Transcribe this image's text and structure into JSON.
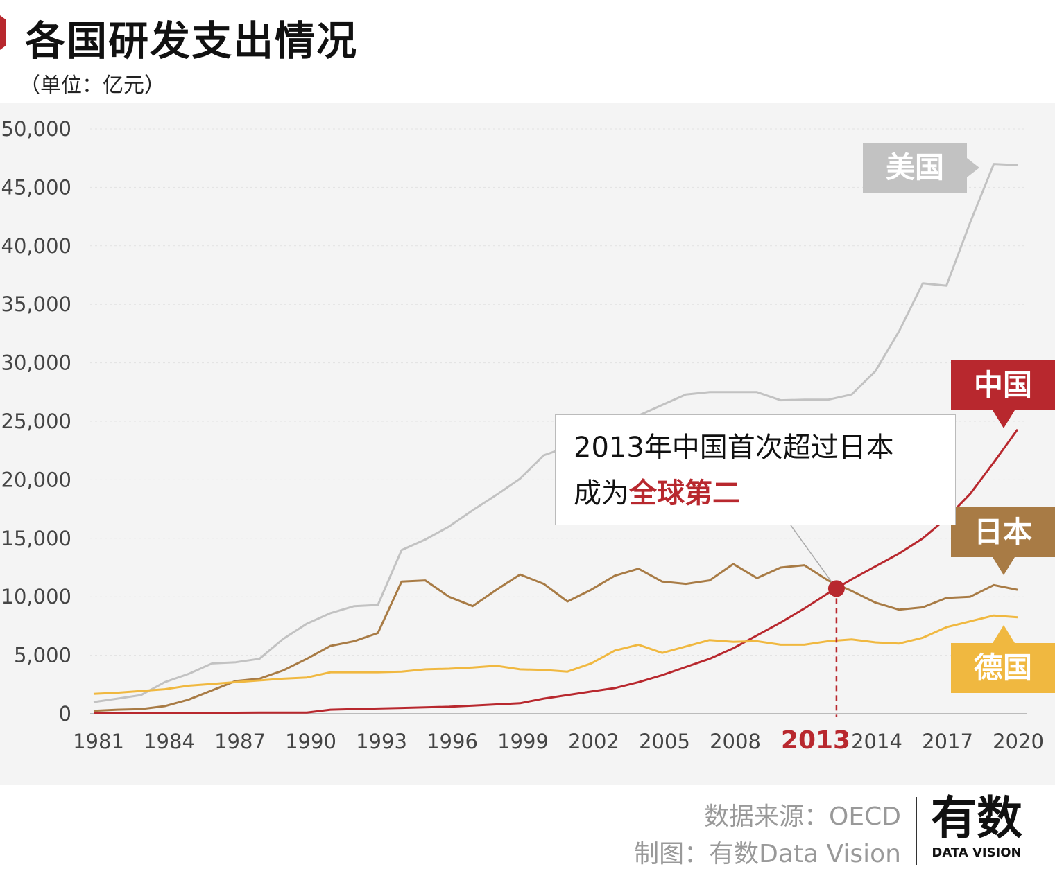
{
  "title": "各国研发支出情况",
  "unit": "（单位：亿元）",
  "colors": {
    "us": "#c2c2c2",
    "china": "#b8282e",
    "japan": "#a87b45",
    "germany": "#f0b840"
  },
  "chart_data": {
    "type": "line",
    "title": "各国研发支出情况",
    "ylabel": "（单位：亿元）",
    "ylim": [
      0,
      50000
    ],
    "yticks": [
      "0",
      "5,000",
      "10,000",
      "15,000",
      "20,000",
      "25,000",
      "30,000",
      "35,000",
      "40,000",
      "45,000",
      "50,000"
    ],
    "xtick_labels": [
      "1981",
      "1984",
      "1987",
      "1990",
      "1993",
      "1996",
      "1999",
      "2002",
      "2005",
      "2008",
      "2013",
      "2014",
      "2017",
      "2020"
    ],
    "highlight_tick": "2013",
    "grid": true,
    "x": [
      1981,
      1982,
      1983,
      1984,
      1985,
      1986,
      1987,
      1988,
      1989,
      1990,
      1991,
      1992,
      1993,
      1994,
      1995,
      1996,
      1997,
      1998,
      1999,
      2000,
      2001,
      2002,
      2003,
      2004,
      2005,
      2006,
      2007,
      2008,
      2009,
      2010,
      2011,
      2012,
      2013,
      2014,
      2015,
      2016,
      2017,
      2018,
      2019,
      2020
    ],
    "series": [
      {
        "name": "美国",
        "color": "#c2c2c2",
        "values": [
          1000,
          1300,
          1600,
          2700,
          3400,
          4300,
          4400,
          4700,
          6400,
          7700,
          8600,
          9200,
          9300,
          14000,
          14900,
          16000,
          17400,
          18700,
          20100,
          22100,
          22800,
          23700,
          24600,
          25500,
          26400,
          27300,
          27500,
          27500,
          27500,
          26800,
          26850,
          26850,
          27300,
          29300,
          32700,
          36800,
          36600,
          42000,
          47000,
          46900
        ]
      },
      {
        "name": "中国",
        "color": "#b8282e",
        "values": [
          30,
          40,
          50,
          60,
          70,
          80,
          90,
          100,
          100,
          100,
          350,
          400,
          450,
          500,
          550,
          600,
          700,
          800,
          900,
          1300,
          1600,
          1900,
          2200,
          2700,
          3300,
          4000,
          4700,
          5600,
          6700,
          7800,
          9000,
          10300,
          11500,
          12600,
          13700,
          15000,
          16700,
          18800,
          21500,
          24300
        ]
      },
      {
        "name": "日本",
        "color": "#a87b45",
        "values": [
          250,
          350,
          400,
          650,
          1200,
          2000,
          2800,
          3000,
          3700,
          4700,
          5800,
          6200,
          6900,
          11300,
          11400,
          10000,
          9200,
          10600,
          11900,
          11100,
          9600,
          10600,
          11800,
          12400,
          11300,
          11100,
          11400,
          12800,
          11600,
          12500,
          12700,
          11400,
          10500,
          9500,
          8900,
          9100,
          9900,
          10000,
          11000,
          10600
        ]
      },
      {
        "name": "德国",
        "color": "#f0b840",
        "values": [
          1700,
          1800,
          1950,
          2100,
          2400,
          2550,
          2700,
          2850,
          3000,
          3100,
          3550,
          3550,
          3550,
          3600,
          3800,
          3850,
          3950,
          4100,
          3800,
          3750,
          3600,
          4300,
          5400,
          5900,
          5200,
          5750,
          6300,
          6150,
          6200,
          5900,
          5900,
          6200,
          6350,
          6100,
          6000,
          6500,
          7400,
          7900,
          8400,
          8250
        ]
      }
    ],
    "annotation": {
      "year": 2013,
      "line1": "2013年中国首次超过日本",
      "line2_prefix": "成为",
      "line2_highlight": "全球第二"
    }
  },
  "source": "数据来源：OECD",
  "credit": "制图：有数Data Vision",
  "logo": {
    "main": "有数",
    "sub": "DATA VISION"
  }
}
